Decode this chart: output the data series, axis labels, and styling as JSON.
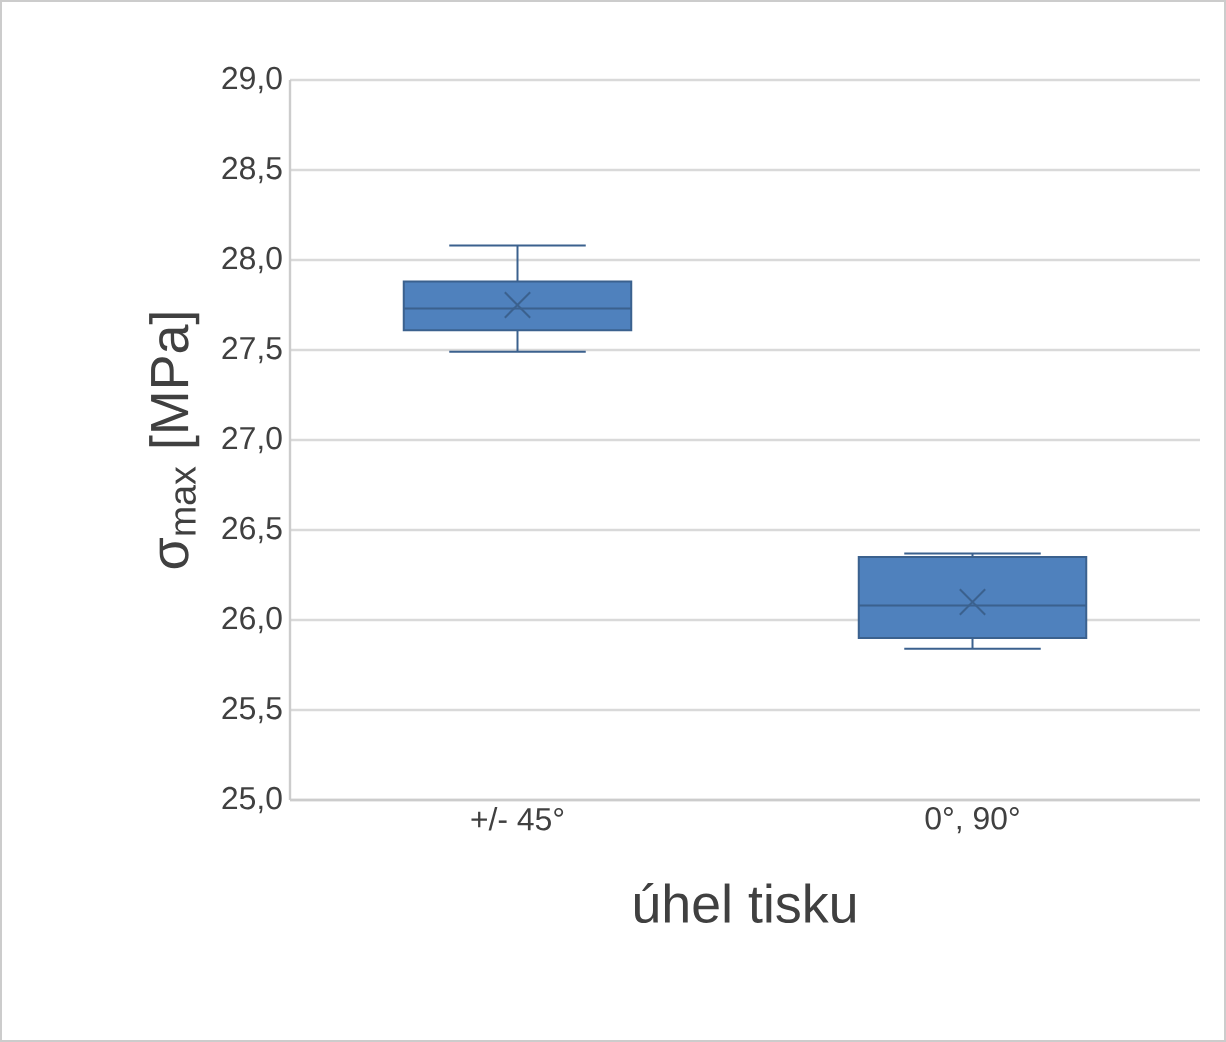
{
  "chart_data": {
    "type": "box",
    "categories": [
      "+/- 45°",
      "0°, 90°"
    ],
    "boxes": [
      {
        "low": 27.49,
        "q1": 27.61,
        "median": 27.73,
        "q3": 27.88,
        "high": 28.08,
        "mean": 27.75
      },
      {
        "low": 25.84,
        "q1": 25.9,
        "median": 26.08,
        "q3": 26.35,
        "high": 26.37,
        "mean": 26.1
      }
    ],
    "color": "#4f81bd",
    "xlabel": "úhel tisku",
    "ylabel": "σ$_{max}$ [MPa]",
    "ylim": [
      25,
      29
    ],
    "yticks": [
      {
        "value": 25,
        "label": "25,0"
      },
      {
        "value": 25.5,
        "label": "25,5"
      },
      {
        "value": 26,
        "label": "26,0"
      },
      {
        "value": 26.5,
        "label": "26,5"
      },
      {
        "value": 27,
        "label": "27,0"
      },
      {
        "value": 27.5,
        "label": "27,5"
      },
      {
        "value": 28,
        "label": "28,0"
      },
      {
        "value": 28.5,
        "label": "28,5"
      },
      {
        "value": 29,
        "label": "29,0"
      }
    ],
    "grid": "y"
  }
}
